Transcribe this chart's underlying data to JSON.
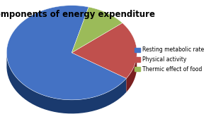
{
  "title": "Components of energy expenditure",
  "slices": [
    70,
    20,
    10
  ],
  "labels": [
    "Resting metabolic rate",
    "Physical activity",
    "Thermic effect of food"
  ],
  "colors": [
    "#4472C4",
    "#C0504D",
    "#9BBB59"
  ],
  "dark_colors": [
    "#1a3a6e",
    "#7a2020",
    "#4a6a10"
  ],
  "startangle": 75,
  "background_color": "#ffffff",
  "title_fontsize": 8.5,
  "legend_fontsize": 5.5
}
